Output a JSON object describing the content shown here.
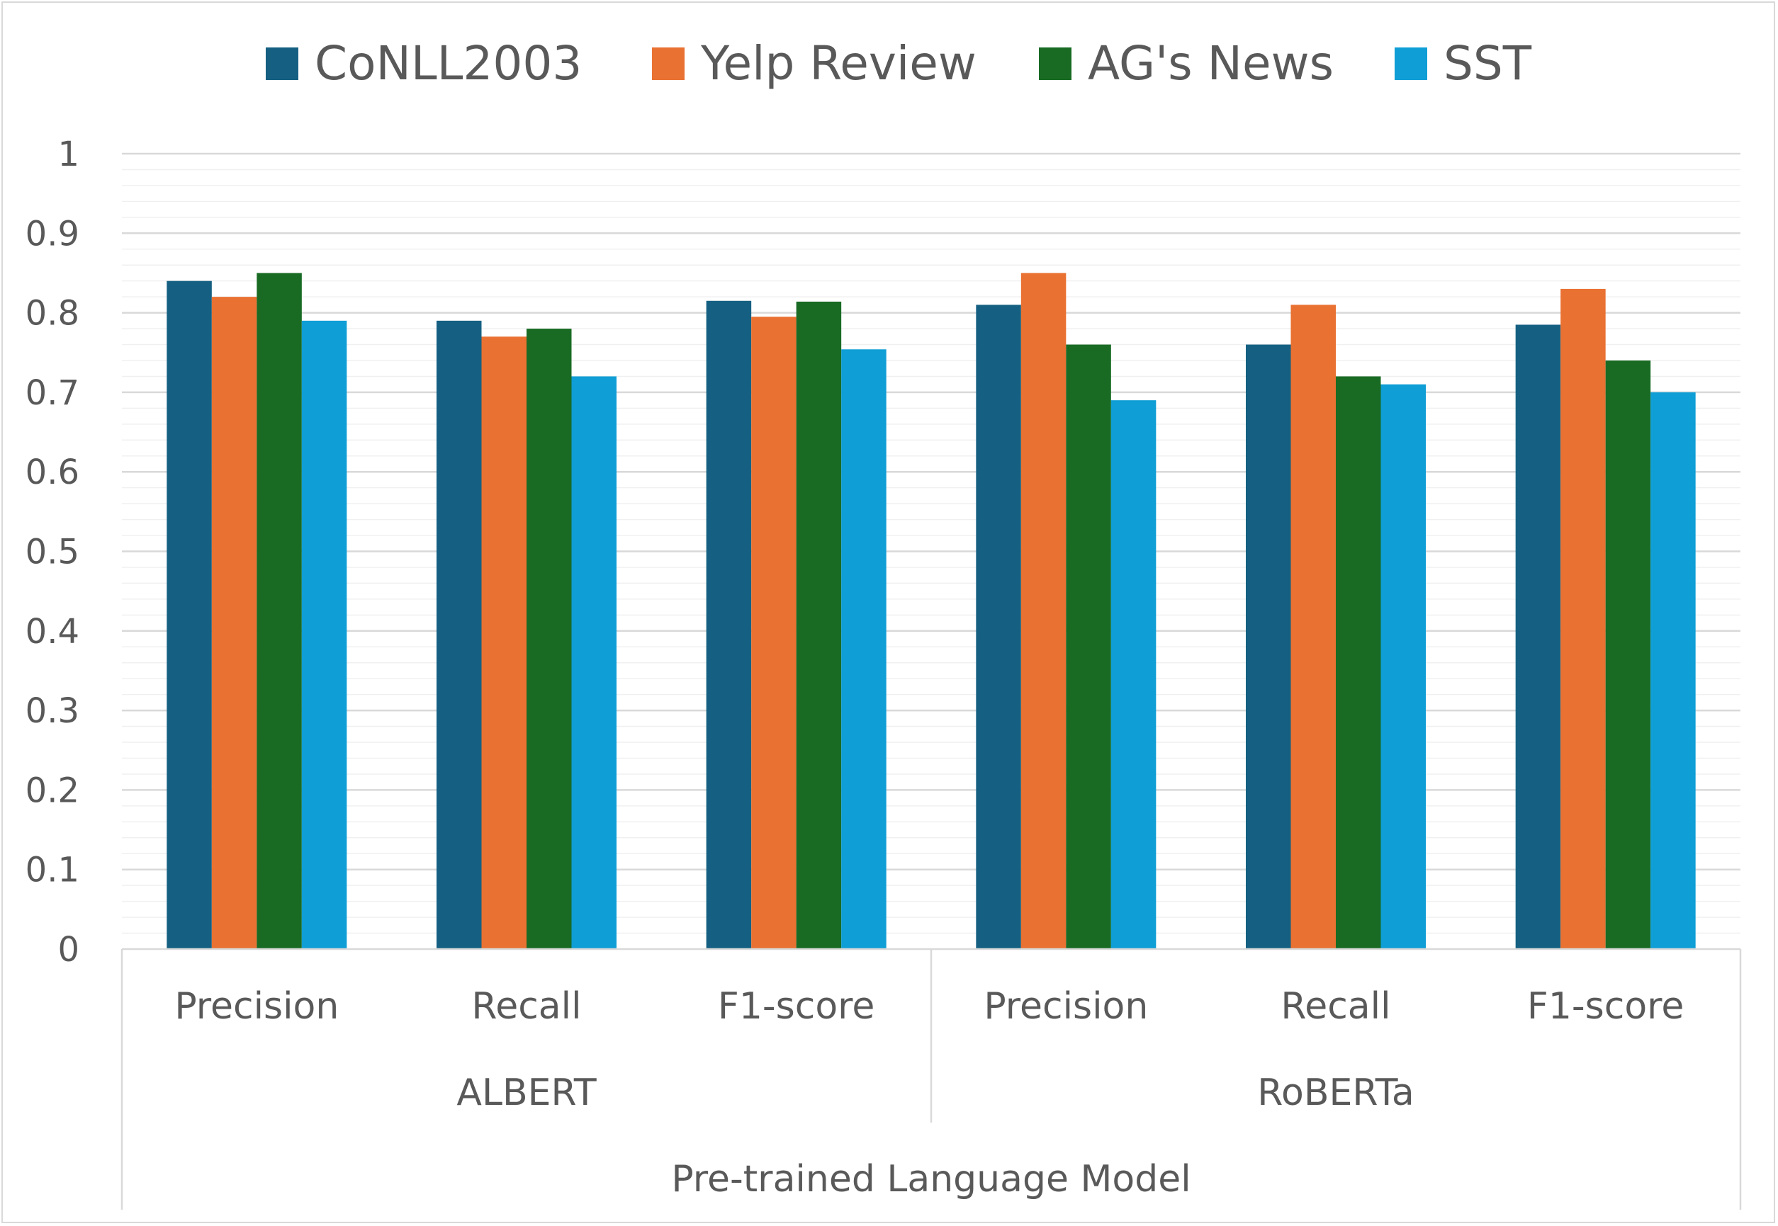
{
  "chart_data": {
    "type": "bar",
    "title": "",
    "xlabel": "Pre-trained Language Model",
    "ylabel": "",
    "ylim": [
      0,
      1
    ],
    "yticks": [
      "0",
      "0.1",
      "0.2",
      "0.3",
      "0.4",
      "0.5",
      "0.6",
      "0.7",
      "0.8",
      "0.9",
      "1"
    ],
    "grid": true,
    "legend_position": "top",
    "groups": [
      {
        "name": "ALBERT",
        "categories": [
          "Precision",
          "Recall",
          "F1-score"
        ]
      },
      {
        "name": "RoBERTa",
        "categories": [
          "Precision",
          "Recall",
          "F1-score"
        ]
      }
    ],
    "categories": [
      "Precision",
      "Recall",
      "F1-score",
      "Precision",
      "Recall",
      "F1-score"
    ],
    "series": [
      {
        "name": "CoNLL2003",
        "color": "#156082",
        "values": [
          0.84,
          0.79,
          0.815,
          0.81,
          0.76,
          0.785
        ]
      },
      {
        "name": "Yelp Review",
        "color": "#E97132",
        "values": [
          0.82,
          0.77,
          0.795,
          0.85,
          0.81,
          0.83
        ]
      },
      {
        "name": "AG's News",
        "color": "#196B24",
        "values": [
          0.85,
          0.78,
          0.814,
          0.76,
          0.72,
          0.74
        ]
      },
      {
        "name": "SST",
        "color": "#0F9ED5",
        "values": [
          0.79,
          0.72,
          0.754,
          0.69,
          0.71,
          0.7
        ]
      }
    ]
  }
}
